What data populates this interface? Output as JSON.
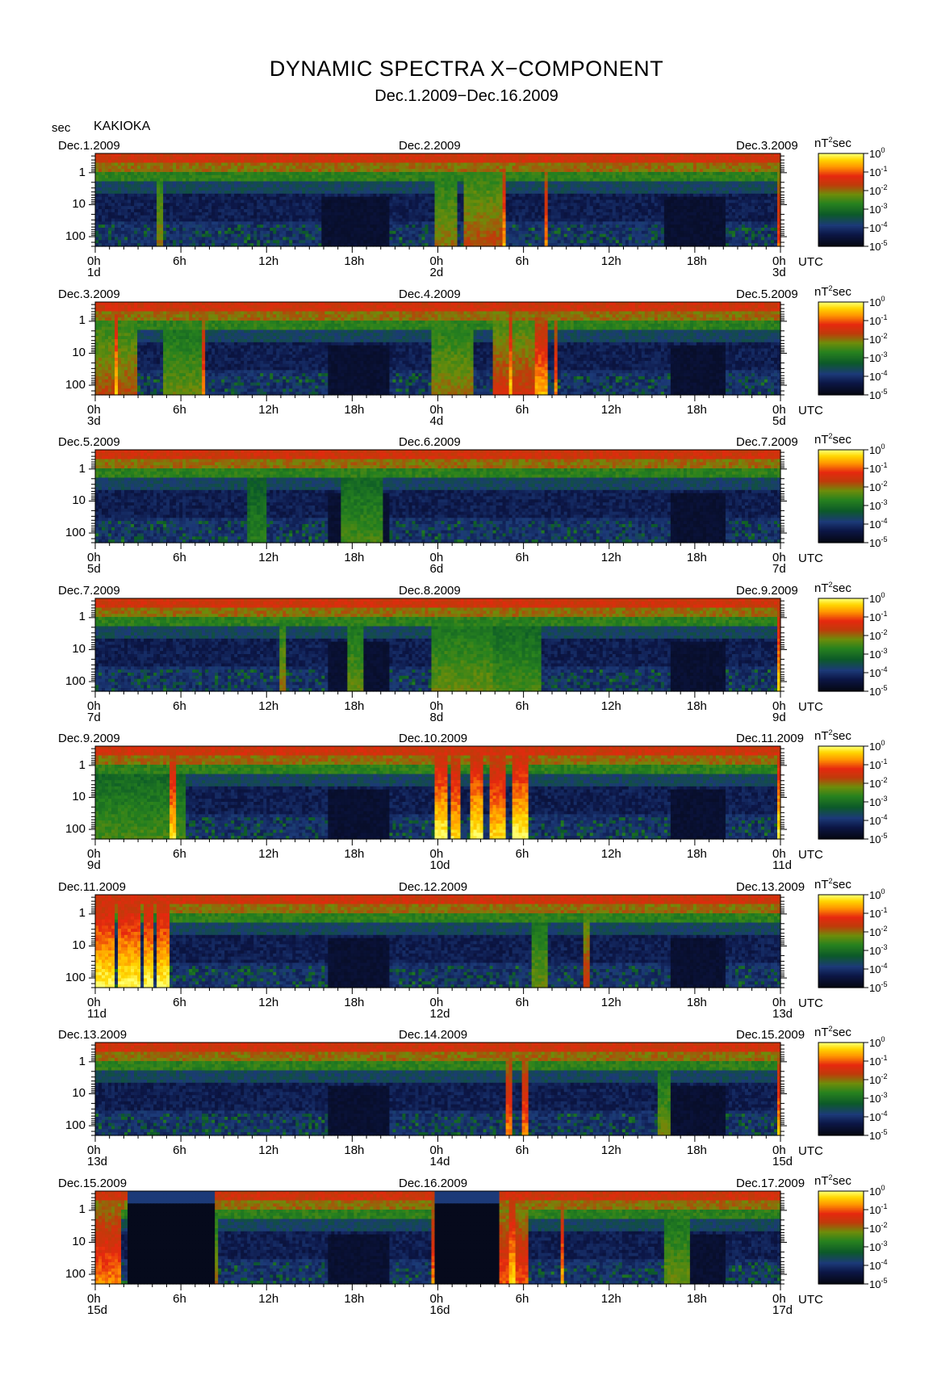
{
  "figure": {
    "title": "DYNAMIC SPECTRA X−COMPONENT",
    "subtitle": "Dec.1.2009−Dec.16.2009",
    "y_unit": "sec",
    "station": "KAKIOKA",
    "colorbar_unit": "nT²sec",
    "colorbar_unit_base": "nT",
    "colorbar_unit_exp": "2",
    "colorbar_unit_tail": "sec",
    "x_axis_unit": "UTC"
  },
  "chart_data": {
    "type": "heatmap",
    "title": "DYNAMIC SPECTRA X−COMPONENT",
    "subtitle": "Dec.1.2009−Dec.16.2009",
    "y_scale": "log",
    "y_axis_reversed": true,
    "y_ticks": [
      "1",
      "10",
      "100"
    ],
    "x_ticks": [
      "0h",
      "6h",
      "12h",
      "18h",
      "0h",
      "6h",
      "12h",
      "18h",
      "0h"
    ],
    "color_scale": {
      "ticks": [
        {
          "b": "10",
          "e": "0"
        },
        {
          "b": "10",
          "e": "-1"
        },
        {
          "b": "10",
          "e": "-2"
        },
        {
          "b": "10",
          "e": "-3"
        },
        {
          "b": "10",
          "e": "-4"
        },
        {
          "b": "10",
          "e": "-5"
        }
      ],
      "colors_high_to_low": [
        "#ffff66",
        "#ffd000",
        "#ff8c00",
        "#e83010",
        "#c81010",
        "#b04008",
        "#6a8a00",
        "#1e7a18",
        "#0a5a20",
        "#1e3a7a",
        "#0a1a50",
        "#050a20"
      ]
    },
    "panels": [
      {
        "left_date": "Dec.1.2009",
        "center_date": "Dec.2.2009",
        "right_date": "Dec.3.2009",
        "day_labels": [
          "1d",
          "2d",
          "3d"
        ],
        "bursts": [
          [
            0.088,
            0.1,
            0.6
          ],
          [
            0.495,
            0.53,
            0.6
          ],
          [
            0.54,
            0.6,
            0.65
          ],
          [
            0.595,
            0.6,
            0.9
          ],
          [
            0.655,
            0.66,
            0.85
          ],
          [
            0.993,
            1.0,
            0.8
          ]
        ],
        "quiet": [
          [
            0.33,
            0.43
          ],
          [
            0.83,
            0.92
          ]
        ]
      },
      {
        "left_date": "Dec.3.2009",
        "center_date": "Dec.4.2009",
        "right_date": "Dec.5.2009",
        "day_labels": [
          "3d",
          "4d",
          "5d"
        ],
        "bursts": [
          [
            0.0,
            0.06,
            0.65
          ],
          [
            0.03,
            0.035,
            0.95
          ],
          [
            0.1,
            0.16,
            0.55
          ],
          [
            0.155,
            0.16,
            0.85
          ],
          [
            0.49,
            0.55,
            0.6
          ],
          [
            0.58,
            0.64,
            0.7
          ],
          [
            0.605,
            0.61,
            0.95
          ],
          [
            0.64,
            0.66,
            0.9
          ],
          [
            0.67,
            0.675,
            0.85
          ]
        ],
        "quiet": [
          [
            0.34,
            0.43
          ],
          [
            0.84,
            0.92
          ]
        ]
      },
      {
        "left_date": "Dec.5.2009",
        "center_date": "Dec.6.2009",
        "right_date": "Dec.7.2009",
        "day_labels": [
          "5d",
          "6d",
          "7d"
        ],
        "bursts": [
          [
            0.22,
            0.25,
            0.45
          ],
          [
            0.36,
            0.42,
            0.5
          ]
        ],
        "quiet": [
          [
            0.34,
            0.43
          ],
          [
            0.84,
            0.92
          ]
        ]
      },
      {
        "left_date": "Dec.7.2009",
        "center_date": "Dec.8.2009",
        "right_date": "Dec.9.2009",
        "day_labels": [
          "7d",
          "8d",
          "9d"
        ],
        "bursts": [
          [
            0.27,
            0.28,
            0.6
          ],
          [
            0.37,
            0.39,
            0.55
          ],
          [
            0.49,
            0.58,
            0.55
          ],
          [
            0.58,
            0.65,
            0.5
          ],
          [
            0.993,
            1.0,
            0.95
          ]
        ],
        "quiet": [
          [
            0.34,
            0.43
          ],
          [
            0.84,
            0.92
          ]
        ]
      },
      {
        "left_date": "Dec.9.2009",
        "center_date": "Dec.10.2009",
        "right_date": "Dec.11.2009",
        "day_labels": [
          "9d",
          "10d",
          "11d"
        ],
        "bursts": [
          [
            0.0,
            0.13,
            0.5
          ],
          [
            0.11,
            0.12,
            0.95
          ],
          [
            0.495,
            0.515,
            1.0
          ],
          [
            0.52,
            0.535,
            0.95
          ],
          [
            0.545,
            0.565,
            1.0
          ],
          [
            0.575,
            0.6,
            0.95
          ],
          [
            0.61,
            0.63,
            1.0
          ],
          [
            0.993,
            1.0,
            1.0
          ]
        ],
        "quiet": [
          [
            0.34,
            0.43
          ],
          [
            0.84,
            0.92
          ]
        ]
      },
      {
        "left_date": "Dec.11.2009",
        "center_date": "Dec.12.2009",
        "right_date": "Dec.13.2009",
        "day_labels": [
          "11d",
          "12d",
          "13d"
        ],
        "bursts": [
          [
            0.0,
            0.03,
            1.0
          ],
          [
            0.035,
            0.065,
            1.0
          ],
          [
            0.07,
            0.085,
            1.0
          ],
          [
            0.09,
            0.11,
            1.0
          ],
          [
            0.635,
            0.66,
            0.55
          ],
          [
            0.71,
            0.72,
            0.7
          ]
        ],
        "quiet": [
          [
            0.34,
            0.43
          ],
          [
            0.84,
            0.92
          ]
        ]
      },
      {
        "left_date": "Dec.13.2009",
        "center_date": "Dec.14.2009",
        "right_date": "Dec.15.2009",
        "day_labels": [
          "13d",
          "14d",
          "15d"
        ],
        "bursts": [
          [
            0.6,
            0.61,
            0.85
          ],
          [
            0.625,
            0.63,
            0.85
          ],
          [
            0.82,
            0.84,
            0.55
          ],
          [
            0.993,
            1.0,
            0.9
          ]
        ],
        "quiet": [
          [
            0.34,
            0.43
          ],
          [
            0.84,
            0.92
          ]
        ]
      },
      {
        "left_date": "Dec.15.2009",
        "center_date": "Dec.16.2009",
        "right_date": "Dec.17.2009",
        "day_labels": [
          "15d",
          "16d",
          "17d"
        ],
        "bursts": [
          [
            0.0,
            0.04,
            0.85
          ],
          [
            0.17,
            0.18,
            0.6
          ],
          [
            0.49,
            0.495,
            0.85
          ],
          [
            0.59,
            0.63,
            0.8
          ],
          [
            0.605,
            0.615,
            0.95
          ],
          [
            0.68,
            0.685,
            0.9
          ],
          [
            0.83,
            0.87,
            0.55
          ]
        ],
        "quiet": [
          [
            0.34,
            0.43
          ],
          [
            0.84,
            0.92
          ]
        ],
        "gaps": [
          [
            0.045,
            0.175
          ],
          [
            0.495,
            0.59
          ]
        ]
      }
    ]
  }
}
